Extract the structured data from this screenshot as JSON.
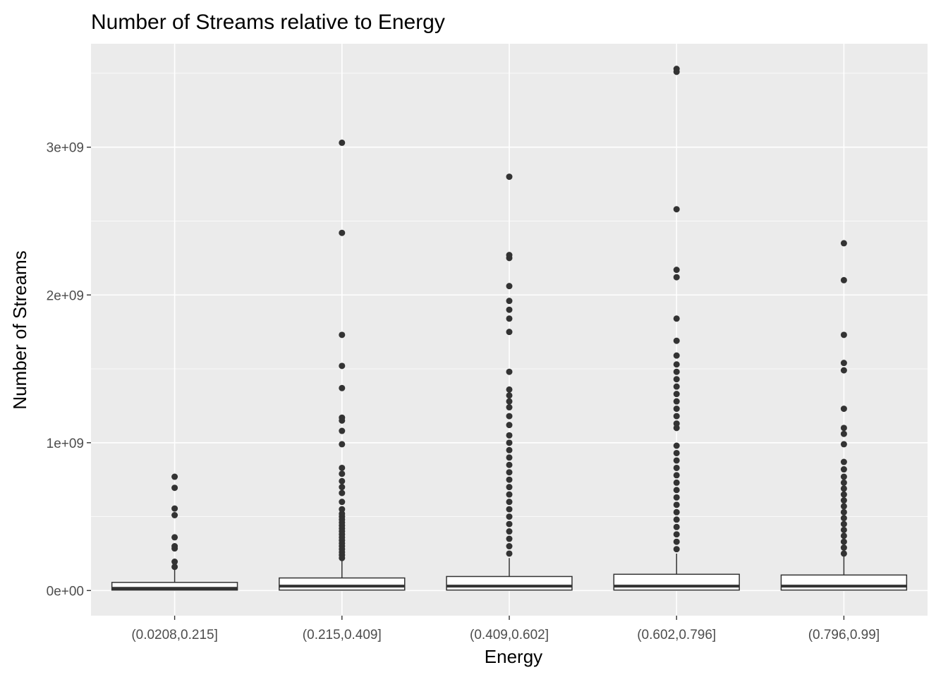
{
  "chart_data": {
    "type": "boxplot",
    "title": "Number of Streams relative to Energy",
    "xlabel": "Energy",
    "ylabel": "Number of Streams",
    "ylim": [
      -170000000,
      3700000000
    ],
    "y_ticks": [
      {
        "value": 0,
        "label": "0e+00"
      },
      {
        "value": 1000000000,
        "label": "1e+09"
      },
      {
        "value": 2000000000,
        "label": "2e+09"
      },
      {
        "value": 3000000000,
        "label": "3e+09"
      }
    ],
    "grid": true,
    "background": "#ebebeb",
    "point_color": "#333333",
    "categories": [
      "(0.0208,0.215]",
      "(0.215,0.409]",
      "(0.409,0.602]",
      "(0.602,0.796]",
      "(0.796,0.99]"
    ],
    "boxes": [
      {
        "category": "(0.0208,0.215]",
        "min": 0,
        "q1": 3000000,
        "median": 15000000,
        "q3": 55000000,
        "whisker_high": 140000000,
        "outliers": [
          160000000,
          195000000,
          285000000,
          300000000,
          360000000,
          510000000,
          555000000,
          695000000,
          770000000
        ]
      },
      {
        "category": "(0.215,0.409]",
        "min": 0,
        "q1": 3000000,
        "median": 30000000,
        "q3": 85000000,
        "whisker_high": 200000000,
        "outliers": [
          220000000,
          240000000,
          260000000,
          280000000,
          300000000,
          320000000,
          340000000,
          360000000,
          380000000,
          400000000,
          420000000,
          440000000,
          460000000,
          480000000,
          500000000,
          520000000,
          550000000,
          600000000,
          660000000,
          700000000,
          740000000,
          790000000,
          830000000,
          990000000,
          1080000000,
          1150000000,
          1170000000,
          1370000000,
          1520000000,
          1730000000,
          2420000000,
          3030000000
        ]
      },
      {
        "category": "(0.409,0.602]",
        "min": 0,
        "q1": 3000000,
        "median": 30000000,
        "q3": 95000000,
        "whisker_high": 220000000,
        "outliers": [
          250000000,
          300000000,
          350000000,
          400000000,
          450000000,
          500000000,
          550000000,
          600000000,
          650000000,
          700000000,
          750000000,
          800000000,
          850000000,
          900000000,
          950000000,
          1000000000,
          1050000000,
          1120000000,
          1180000000,
          1240000000,
          1280000000,
          1320000000,
          1360000000,
          1480000000,
          1750000000,
          1840000000,
          1900000000,
          1960000000,
          2060000000,
          2250000000,
          2270000000,
          2800000000
        ]
      },
      {
        "category": "(0.602,0.796]",
        "min": 0,
        "q1": 3000000,
        "median": 30000000,
        "q3": 110000000,
        "whisker_high": 250000000,
        "outliers": [
          280000000,
          330000000,
          380000000,
          430000000,
          480000000,
          530000000,
          580000000,
          630000000,
          680000000,
          730000000,
          780000000,
          830000000,
          880000000,
          930000000,
          980000000,
          1100000000,
          1130000000,
          1180000000,
          1230000000,
          1280000000,
          1330000000,
          1380000000,
          1430000000,
          1480000000,
          1530000000,
          1590000000,
          1690000000,
          1840000000,
          2120000000,
          2170000000,
          2580000000,
          3510000000,
          3530000000
        ]
      },
      {
        "category": "(0.796,0.99]",
        "min": 0,
        "q1": 3000000,
        "median": 30000000,
        "q3": 105000000,
        "whisker_high": 230000000,
        "outliers": [
          250000000,
          290000000,
          330000000,
          370000000,
          410000000,
          450000000,
          490000000,
          530000000,
          570000000,
          610000000,
          650000000,
          690000000,
          730000000,
          770000000,
          820000000,
          870000000,
          990000000,
          1060000000,
          1100000000,
          1230000000,
          1490000000,
          1540000000,
          1730000000,
          2100000000,
          2350000000
        ]
      }
    ]
  }
}
